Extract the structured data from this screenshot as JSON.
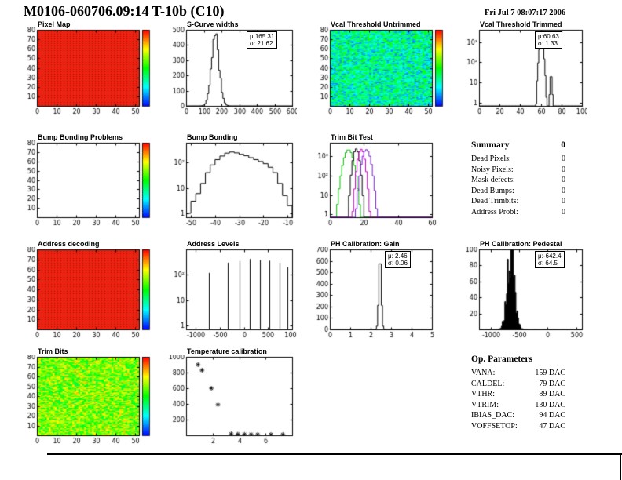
{
  "header": {
    "title": "M0106-060706.09:14 T-10b (C10)",
    "date": "Fri Jul  7 08:07:17 2006"
  },
  "summary": {
    "title": "Summary",
    "total": "0",
    "rows": [
      {
        "label": "Dead Pixels:",
        "value": "0"
      },
      {
        "label": "Noisy Pixels:",
        "value": "0"
      },
      {
        "label": "Mask defects:",
        "value": "0"
      },
      {
        "label": "Dead Bumps:",
        "value": "0"
      },
      {
        "label": "Dead Trimbits:",
        "value": "0"
      },
      {
        "label": "Address Probl:",
        "value": "0"
      }
    ]
  },
  "op_parameters": {
    "title": "Op. Parameters",
    "rows": [
      {
        "label": "VANA:",
        "value": "159 DAC"
      },
      {
        "label": "CALDEL:",
        "value": "79 DAC"
      },
      {
        "label": "VTHR:",
        "value": "89 DAC"
      },
      {
        "label": "VTRIM:",
        "value": "130 DAC"
      },
      {
        "label": "IBIAS_DAC:",
        "value": "94 DAC"
      },
      {
        "label": "VOFFSETOP:",
        "value": "47 DAC"
      }
    ]
  },
  "colors": {
    "map_red": "#ee2211",
    "map_red_dot": "#9c1405",
    "trim_green": "#00bb00",
    "trim_magenta": "#cc00cc",
    "trim_violet": "#7722cc",
    "hist_line": "#000000"
  },
  "chart_data": [
    {
      "id": "pixel-map",
      "type": "heatmap",
      "title": "Pixel Map",
      "x": {
        "min": 0,
        "max": 52,
        "ticks": [
          [
            0,
            "0"
          ],
          [
            10,
            "10"
          ],
          [
            20,
            "20"
          ],
          [
            30,
            "30"
          ],
          [
            40,
            "40"
          ],
          [
            50,
            "50"
          ]
        ]
      },
      "y": {
        "min": 0,
        "max": 80,
        "ticks": [
          [
            10,
            "10"
          ],
          [
            20,
            "20"
          ],
          [
            30,
            "30"
          ],
          [
            40,
            "40"
          ],
          [
            50,
            "50"
          ],
          [
            60,
            "60"
          ],
          [
            70,
            "70"
          ],
          [
            80,
            "80"
          ]
        ]
      },
      "map": {
        "pattern": "red-dots",
        "colorbar": true,
        "note": "all pixels alive (uniform max)"
      }
    },
    {
      "id": "s-curve-widths",
      "type": "histogram",
      "title": "S-Curve widths",
      "stats": {
        "mu": "μ:165.31",
        "sigma": "σ: 21.62"
      },
      "x": {
        "min": 0,
        "max": 600,
        "ticks": [
          [
            0,
            "0"
          ],
          [
            100,
            "100"
          ],
          [
            200,
            "200"
          ],
          [
            300,
            "300"
          ],
          [
            400,
            "400"
          ],
          [
            500,
            "500"
          ],
          [
            600,
            "600"
          ]
        ]
      },
      "y": {
        "min": 0,
        "max": 500,
        "ticks": [
          [
            0,
            "0"
          ],
          [
            100,
            "100"
          ],
          [
            200,
            "200"
          ],
          [
            300,
            "300"
          ],
          [
            400,
            "400"
          ],
          [
            500,
            "500"
          ]
        ]
      },
      "model": {
        "kind": "gauss",
        "binw": 8,
        "jitter": 0.12,
        "seed": 3,
        "components": [
          {
            "mean": 165.31,
            "sigma": 21.62,
            "peak": 460
          }
        ]
      }
    },
    {
      "id": "vcal-threshold-untrimmed",
      "type": "heatmap",
      "title": "Vcal Threshold Untrimmed",
      "x": {
        "min": 0,
        "max": 52,
        "ticks": [
          [
            0,
            "0"
          ],
          [
            10,
            "10"
          ],
          [
            20,
            "20"
          ],
          [
            30,
            "30"
          ],
          [
            40,
            "40"
          ],
          [
            50,
            "50"
          ]
        ]
      },
      "y": {
        "min": 0,
        "max": 80,
        "ticks": [
          [
            10,
            "10"
          ],
          [
            20,
            "20"
          ],
          [
            30,
            "30"
          ],
          [
            40,
            "40"
          ],
          [
            50,
            "50"
          ],
          [
            60,
            "60"
          ],
          [
            70,
            "70"
          ],
          [
            80,
            "80"
          ]
        ]
      },
      "map": {
        "pattern": "noise",
        "seed": 7,
        "vmin": 0.12,
        "vmax": 0.55,
        "nx": 52,
        "ny": 80,
        "colorbar": true,
        "note": "threshold noise map, blue-cyan-green"
      }
    },
    {
      "id": "vcal-threshold-trimmed",
      "type": "histogram",
      "title": "Vcal Threshold Trimmed",
      "stats": {
        "mu": "μ:60.63",
        "sigma": "σ: 1.33"
      },
      "x": {
        "min": 0,
        "max": 100,
        "ticks": [
          [
            0,
            "0"
          ],
          [
            20,
            "20"
          ],
          [
            40,
            "40"
          ],
          [
            60,
            "60"
          ],
          [
            80,
            "80"
          ],
          [
            100,
            "100"
          ]
        ]
      },
      "y": {
        "min": 0.7,
        "max": 4000,
        "log": true,
        "ticks": [
          [
            1,
            "1"
          ],
          [
            10,
            "10"
          ],
          [
            100,
            "10²"
          ],
          [
            1000,
            "10³"
          ]
        ]
      },
      "model": {
        "kind": "gauss",
        "binw": 1,
        "jitter": 0,
        "seed": 1,
        "components": [
          {
            "mean": 60.63,
            "sigma": 1.33,
            "peak": 1500
          },
          {
            "mean": 70,
            "sigma": 0.7,
            "peak": 25
          }
        ]
      }
    },
    {
      "id": "bump-bonding-problems",
      "type": "heatmap",
      "title": "Bump Bonding Problems",
      "x": {
        "min": 0,
        "max": 52,
        "ticks": [
          [
            0,
            "0"
          ],
          [
            10,
            "10"
          ],
          [
            20,
            "20"
          ],
          [
            30,
            "30"
          ],
          [
            40,
            "40"
          ],
          [
            50,
            "50"
          ]
        ]
      },
      "y": {
        "min": 0,
        "max": 80,
        "ticks": [
          [
            10,
            "10"
          ],
          [
            20,
            "20"
          ],
          [
            30,
            "30"
          ],
          [
            40,
            "40"
          ],
          [
            50,
            "50"
          ],
          [
            60,
            "60"
          ],
          [
            70,
            "70"
          ],
          [
            80,
            "80"
          ]
        ]
      },
      "map": {
        "pattern": "empty",
        "colorbar": true,
        "note": "no bump bonding problems"
      }
    },
    {
      "id": "bump-bonding",
      "type": "histogram",
      "title": "Bump Bonding",
      "x": {
        "min": -52,
        "max": -8,
        "ticks": [
          [
            -50,
            "-50"
          ],
          [
            -40,
            "-40"
          ],
          [
            -30,
            "-30"
          ],
          [
            -20,
            "-20"
          ],
          [
            -10,
            "-10"
          ]
        ]
      },
      "y": {
        "min": 0.7,
        "max": 600,
        "log": true,
        "ticks": [
          [
            1,
            "1"
          ],
          [
            10,
            "10"
          ],
          [
            100,
            "10²"
          ]
        ]
      },
      "model": {
        "kind": "bins",
        "x0": -52,
        "dx": 2,
        "values": [
          1,
          3,
          6,
          15,
          40,
          80,
          130,
          180,
          235,
          260,
          240,
          210,
          185,
          155,
          130,
          110,
          90,
          65,
          40,
          15,
          5,
          2
        ]
      }
    },
    {
      "id": "trim-bit-test",
      "type": "histogram",
      "title": "Trim Bit Test",
      "x": {
        "min": 0,
        "max": 60,
        "ticks": [
          [
            0,
            "0"
          ],
          [
            20,
            "20"
          ],
          [
            40,
            "40"
          ],
          [
            60,
            "60"
          ]
        ]
      },
      "y": {
        "min": 0.7,
        "max": 5000,
        "log": true,
        "ticks": [
          [
            1,
            "1"
          ],
          [
            10,
            "10"
          ],
          [
            100,
            "10²"
          ],
          [
            1000,
            "10³"
          ]
        ]
      },
      "model": {
        "kind": "multi",
        "binw": 1,
        "series": [
          {
            "name": "trim-bit-14",
            "color": "#00bb00",
            "mean": 11,
            "sigma": 1.8,
            "peak": 2200
          },
          {
            "name": "trim-bit-13",
            "color": "#000000",
            "mean": 15.5,
            "sigma": 1.2,
            "peak": 2400
          },
          {
            "name": "trim-bit-11",
            "color": "#cc00cc",
            "mean": 18.5,
            "sigma": 1.3,
            "peak": 2300
          },
          {
            "name": "trim-bit-7",
            "color": "#7722cc",
            "mean": 21.5,
            "sigma": 1.6,
            "peak": 2200
          }
        ]
      }
    },
    {
      "id": "address-decoding",
      "type": "heatmap",
      "title": "Address decoding",
      "x": {
        "min": 0,
        "max": 52,
        "ticks": [
          [
            0,
            "0"
          ],
          [
            10,
            "10"
          ],
          [
            20,
            "20"
          ],
          [
            30,
            "30"
          ],
          [
            40,
            "40"
          ],
          [
            50,
            "50"
          ]
        ]
      },
      "y": {
        "min": 0,
        "max": 80,
        "ticks": [
          [
            10,
            "10"
          ],
          [
            20,
            "20"
          ],
          [
            30,
            "30"
          ],
          [
            40,
            "40"
          ],
          [
            50,
            "50"
          ],
          [
            60,
            "60"
          ],
          [
            70,
            "70"
          ],
          [
            80,
            "80"
          ]
        ]
      },
      "map": {
        "pattern": "red-dots",
        "colorbar": true,
        "note": "all addresses decoded (uniform max)"
      }
    },
    {
      "id": "address-levels",
      "type": "histogram",
      "title": "Address Levels",
      "x": {
        "min": -1200,
        "max": 1000,
        "ticks": [
          [
            -1000,
            "-1000"
          ],
          [
            -500,
            "-500"
          ],
          [
            0,
            "0"
          ],
          [
            500,
            "500"
          ],
          [
            1000,
            "1000"
          ]
        ]
      },
      "y": {
        "min": 0.7,
        "max": 1000,
        "log": true,
        "ticks": [
          [
            1,
            "1"
          ],
          [
            10,
            "10"
          ],
          [
            100,
            "10²"
          ]
        ]
      },
      "model": {
        "kind": "spikes",
        "spikes": [
          [
            -730,
            120
          ],
          [
            -340,
            300
          ],
          [
            -90,
            350
          ],
          [
            120,
            420
          ],
          [
            330,
            380
          ],
          [
            530,
            360
          ],
          [
            740,
            300
          ],
          [
            900,
            200
          ]
        ]
      }
    },
    {
      "id": "ph-calibration-gain",
      "type": "histogram",
      "title": "PH Calibration: Gain",
      "stats": {
        "mu": "μ: 2.46",
        "sigma": "σ: 0.06"
      },
      "x": {
        "min": 0,
        "max": 5,
        "ticks": [
          [
            0,
            "0"
          ],
          [
            1,
            "1"
          ],
          [
            2,
            "2"
          ],
          [
            3,
            "3"
          ],
          [
            4,
            "4"
          ],
          [
            5,
            "5"
          ]
        ]
      },
      "y": {
        "min": 0,
        "max": 700,
        "ticks": [
          [
            0,
            "0"
          ],
          [
            100,
            "100"
          ],
          [
            200,
            "200"
          ],
          [
            300,
            "300"
          ],
          [
            400,
            "400"
          ],
          [
            500,
            "500"
          ],
          [
            600,
            "600"
          ],
          [
            700,
            "700"
          ]
        ]
      },
      "model": {
        "kind": "gauss",
        "binw": 0.06,
        "jitter": 0,
        "seed": 1,
        "components": [
          {
            "mean": 2.46,
            "sigma": 0.06,
            "peak": 650
          }
        ]
      }
    },
    {
      "id": "ph-calibration-pedestal",
      "type": "histogram",
      "title": "PH Calibration: Pedestal",
      "stats": {
        "mu": "μ:-642.4",
        "sigma": "σ: 64.5"
      },
      "x": {
        "min": -1200,
        "max": 600,
        "ticks": [
          [
            -1000,
            "-1000"
          ],
          [
            -500,
            "-500"
          ],
          [
            0,
            "0"
          ],
          [
            500,
            "500"
          ]
        ]
      },
      "y": {
        "min": 0,
        "max": 100,
        "ticks": [
          [
            20,
            "20"
          ],
          [
            40,
            "40"
          ],
          [
            60,
            "60"
          ],
          [
            80,
            "80"
          ],
          [
            100,
            "100"
          ]
        ]
      },
      "model": {
        "kind": "gauss",
        "binw": 15,
        "jitter": 0.45,
        "seed": 5,
        "fill": true,
        "components": [
          {
            "mean": -642.4,
            "sigma": 64.5,
            "peak": 88
          }
        ]
      }
    },
    {
      "id": "trim-bits",
      "type": "heatmap",
      "title": "Trim Bits",
      "x": {
        "min": 0,
        "max": 52,
        "ticks": [
          [
            0,
            "0"
          ],
          [
            10,
            "10"
          ],
          [
            20,
            "20"
          ],
          [
            30,
            "30"
          ],
          [
            40,
            "40"
          ],
          [
            50,
            "50"
          ]
        ]
      },
      "y": {
        "min": 0,
        "max": 80,
        "ticks": [
          [
            10,
            "10"
          ],
          [
            20,
            "20"
          ],
          [
            30,
            "30"
          ],
          [
            40,
            "40"
          ],
          [
            50,
            "50"
          ],
          [
            60,
            "60"
          ],
          [
            70,
            "70"
          ],
          [
            80,
            "80"
          ]
        ]
      },
      "map": {
        "pattern": "noise",
        "seed": 13,
        "vmin": 0.42,
        "vmax": 0.82,
        "nx": 52,
        "ny": 80,
        "colorbar": true,
        "note": "trim bit map, green-yellow"
      }
    },
    {
      "id": "temperature-calibration",
      "type": "scatter",
      "title": "Temperature calibration",
      "x": {
        "min": 0,
        "max": 8,
        "ticks": [
          [
            2,
            "2"
          ],
          [
            4,
            "4"
          ],
          [
            6,
            "6"
          ]
        ]
      },
      "y": {
        "min": 0,
        "max": 1000,
        "ticks": [
          [
            200,
            "200"
          ],
          [
            400,
            "400"
          ],
          [
            600,
            "600"
          ],
          [
            800,
            "800"
          ],
          [
            1000,
            "1000"
          ]
        ]
      },
      "model": {
        "kind": "points",
        "marker": "asterisk",
        "points": [
          [
            0.9,
            900
          ],
          [
            1.2,
            830
          ],
          [
            1.9,
            600
          ],
          [
            2.4,
            390
          ],
          [
            3.4,
            18
          ],
          [
            3.9,
            14
          ],
          [
            4.4,
            12
          ],
          [
            4.9,
            12
          ],
          [
            5.4,
            10
          ],
          [
            6.4,
            10
          ],
          [
            7.3,
            10
          ]
        ]
      }
    }
  ]
}
